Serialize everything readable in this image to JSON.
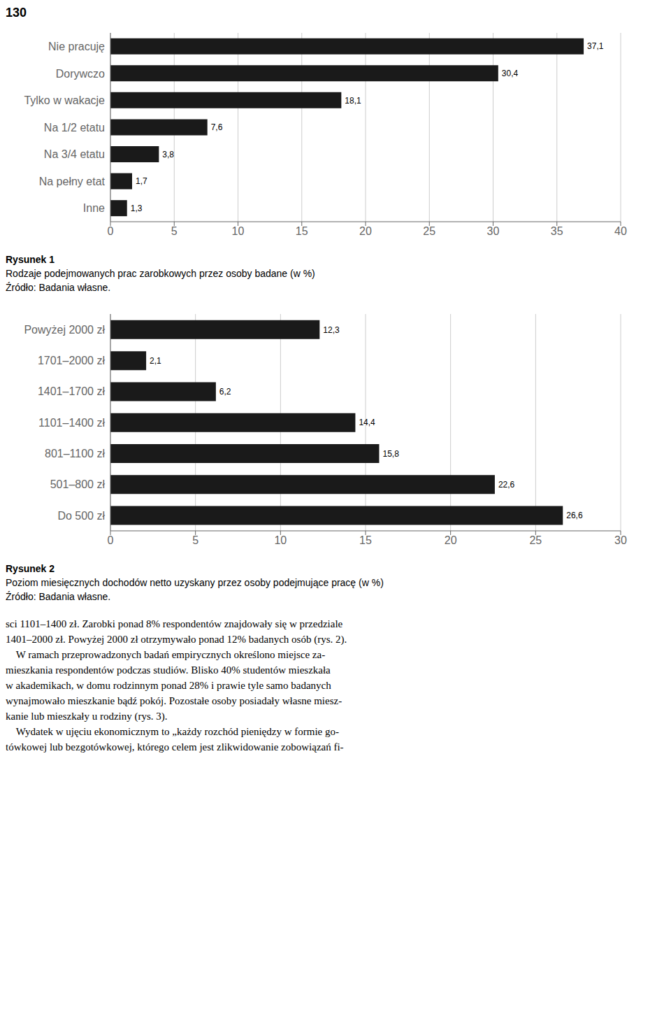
{
  "page_number": "130",
  "chart_data": [
    {
      "type": "bar",
      "orientation": "horizontal",
      "title": "Rysunek 1",
      "subtitle": "Rodzaje podejmowanych prac zarobkowych przez osoby badane (w %)",
      "annotations": [
        "Źródło: Badania własne."
      ],
      "categories": [
        "Nie pracuję",
        "Dorywczo",
        "Tylko w wakacje",
        "Na 1/2 etatu",
        "Na 3/4 etatu",
        "Na pełny etat",
        "Inne"
      ],
      "values": [
        37.1,
        30.4,
        18.1,
        7.6,
        3.8,
        1.7,
        1.3
      ],
      "value_labels": [
        "37,1",
        "30,4",
        "18,1",
        "7,6",
        "3,8",
        "1,7",
        "1,3"
      ],
      "data_labels": true,
      "color": "#1a1a1a",
      "xlim": [
        0,
        40
      ],
      "xticks": [
        0,
        5,
        10,
        15,
        20,
        25,
        30,
        35,
        40
      ],
      "grid": true
    },
    {
      "type": "bar",
      "orientation": "horizontal",
      "title": "Rysunek 2",
      "subtitle": "Poziom miesięcznych dochodów netto uzyskany przez osoby podejmujące pracę (w %)",
      "annotations": [
        "Źródło: Badania własne."
      ],
      "categories": [
        "Powyżej 2000 zł",
        "1701–2000 zł",
        "1401–1700 zł",
        "1101–1400 zł",
        "801–1100 zł",
        "501–800 zł",
        "Do 500 zł"
      ],
      "values": [
        12.3,
        2.1,
        6.2,
        14.4,
        15.8,
        22.6,
        26.6
      ],
      "value_labels": [
        "12,3",
        "2,1",
        "6,2",
        "14,4",
        "15,8",
        "22,6",
        "26,6"
      ],
      "data_labels": true,
      "color": "#1a1a1a",
      "xlim": [
        0,
        30
      ],
      "xticks": [
        0,
        5,
        10,
        15,
        20,
        25,
        30
      ],
      "grid": true
    }
  ],
  "body_text_lines": [
    "sci 1101–1400 zł. Zarobki ponad 8% respondentów znajdowały się w przedziale",
    "1401–2000 zł. Powyżej 2000 zł otrzymywało ponad 12% badanych osób (rys. 2).",
    "    W ramach przeprowadzonych badań empirycznych określono miejsce za-",
    "mieszkania respondentów podczas studiów. Blisko 40% studentów mieszkała",
    "w akademikach, w domu rodzinnym ponad 28% i prawie tyle samo badanych",
    "wynajmowało mieszkanie bądź pokój. Pozostałe osoby posiadały własne miesz-",
    "kanie lub mieszkały u rodziny (rys. 3).",
    "    Wydatek w ujęciu ekonomicznym to „każdy rozchód pieniędzy w formie go-",
    "tówkowej lub bezgotówkowej, którego celem jest zlikwidowanie zobowiązań fi-"
  ]
}
